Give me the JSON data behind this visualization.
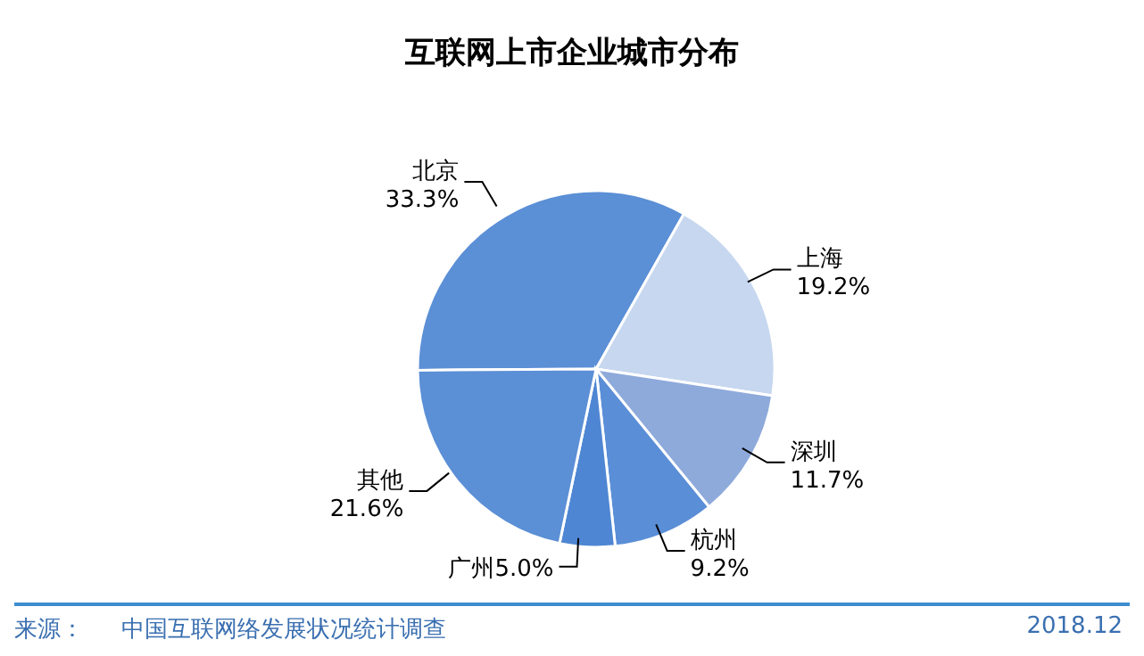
{
  "chart_data": {
    "type": "pie",
    "title": "互联网上市企业城市分布",
    "categories": [
      "北京",
      "上海",
      "深圳",
      "杭州",
      "广州",
      "其他"
    ],
    "values": [
      33.3,
      19.2,
      11.7,
      9.2,
      5.0,
      21.6
    ],
    "value_labels": [
      "33.3%",
      "19.2%",
      "11.7%",
      "9.2%",
      "5.0%",
      "21.6%"
    ],
    "colors": [
      "#5b8fd6",
      "#c6d7ef",
      "#8eaadb",
      "#5a8ed7",
      "#4f86d3",
      "#5b8fd6"
    ],
    "annotations": [
      "来源：",
      "中国互联网络发展状况统计调查",
      "2018.12"
    ]
  }
}
